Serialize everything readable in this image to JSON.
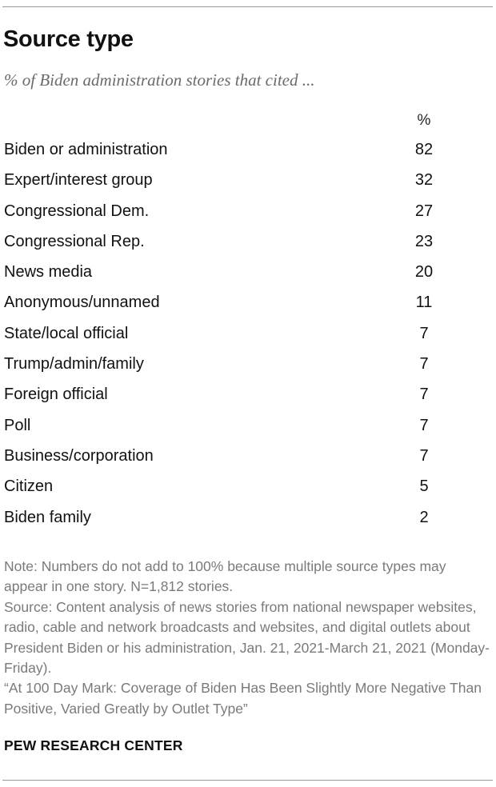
{
  "chart_data": {
    "type": "table",
    "title": "Source type",
    "subtitle": "% of Biden administration stories that cited ...",
    "value_header": "%",
    "categories": [
      "Biden or administration",
      "Expert/interest group",
      "Congressional Dem.",
      "Congressional Rep.",
      "News media",
      "Anonymous/unnamed",
      "State/local official",
      "Trump/admin/family",
      "Foreign official",
      "Poll",
      "Business/corporation",
      "Citizen",
      "Biden family"
    ],
    "values": [
      82,
      32,
      27,
      23,
      20,
      11,
      7,
      7,
      7,
      7,
      7,
      5,
      2
    ]
  },
  "footer": {
    "note": "Note: Numbers do not add to 100% because multiple source types may appear in one story. N=1,812 stories.",
    "source": "Source: Content analysis of news stories from national newspaper websites, radio, cable and network broadcasts and websites, and digital outlets about President Biden or his administration, Jan. 21, 2021-March 21, 2021 (Monday-Friday).",
    "report": "“At 100 Day Mark: Coverage of Biden Has Been Slightly More Negative Than Positive, Varied Greatly by Outlet Type”",
    "brand": "PEW RESEARCH CENTER"
  }
}
